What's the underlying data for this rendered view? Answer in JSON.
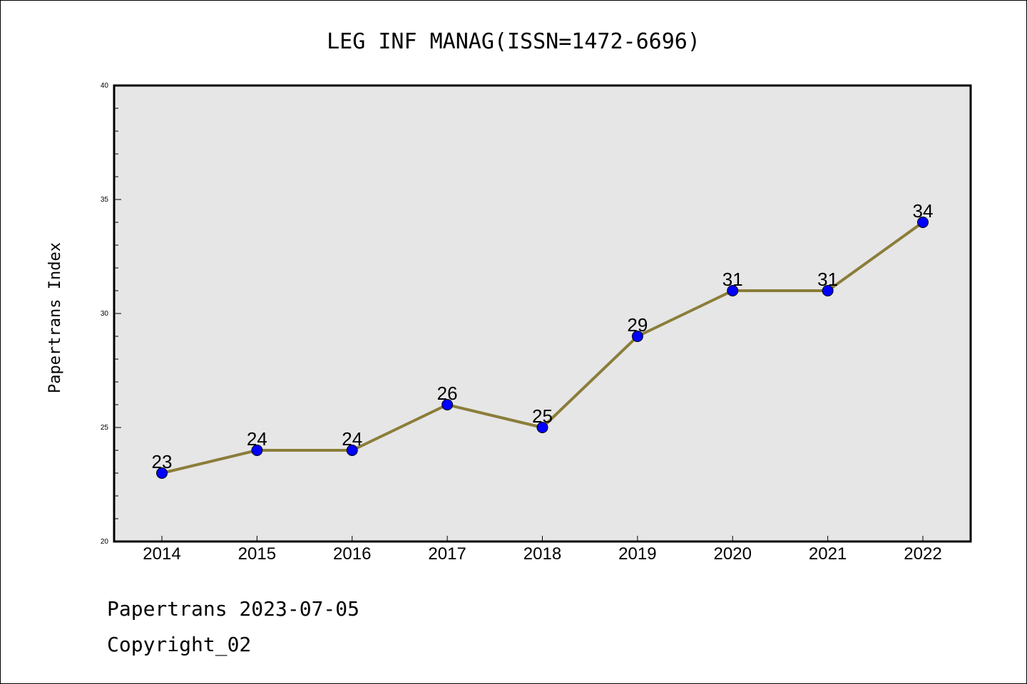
{
  "chart_data": {
    "type": "line",
    "title": "LEG INF MANAG(ISSN=1472-6696)",
    "ylabel": "Papertrans Index",
    "xlabel": "",
    "x": [
      "2014",
      "2015",
      "2016",
      "2017",
      "2018",
      "2019",
      "2020",
      "2021",
      "2022"
    ],
    "series": [
      {
        "values": [
          23,
          24,
          24,
          26,
          25,
          29,
          31,
          31,
          34
        ]
      }
    ],
    "ylim": [
      20,
      40
    ],
    "yticks": [
      "20",
      "25",
      "30",
      "35",
      "40"
    ],
    "grid": false,
    "colors": {
      "line": "#8b7d3a",
      "marker": "#0000ff",
      "plot_background": "#e6e6e6"
    }
  },
  "footer": {
    "line1": "Papertrans 2023-07-05",
    "line2": "Copyright_02"
  }
}
